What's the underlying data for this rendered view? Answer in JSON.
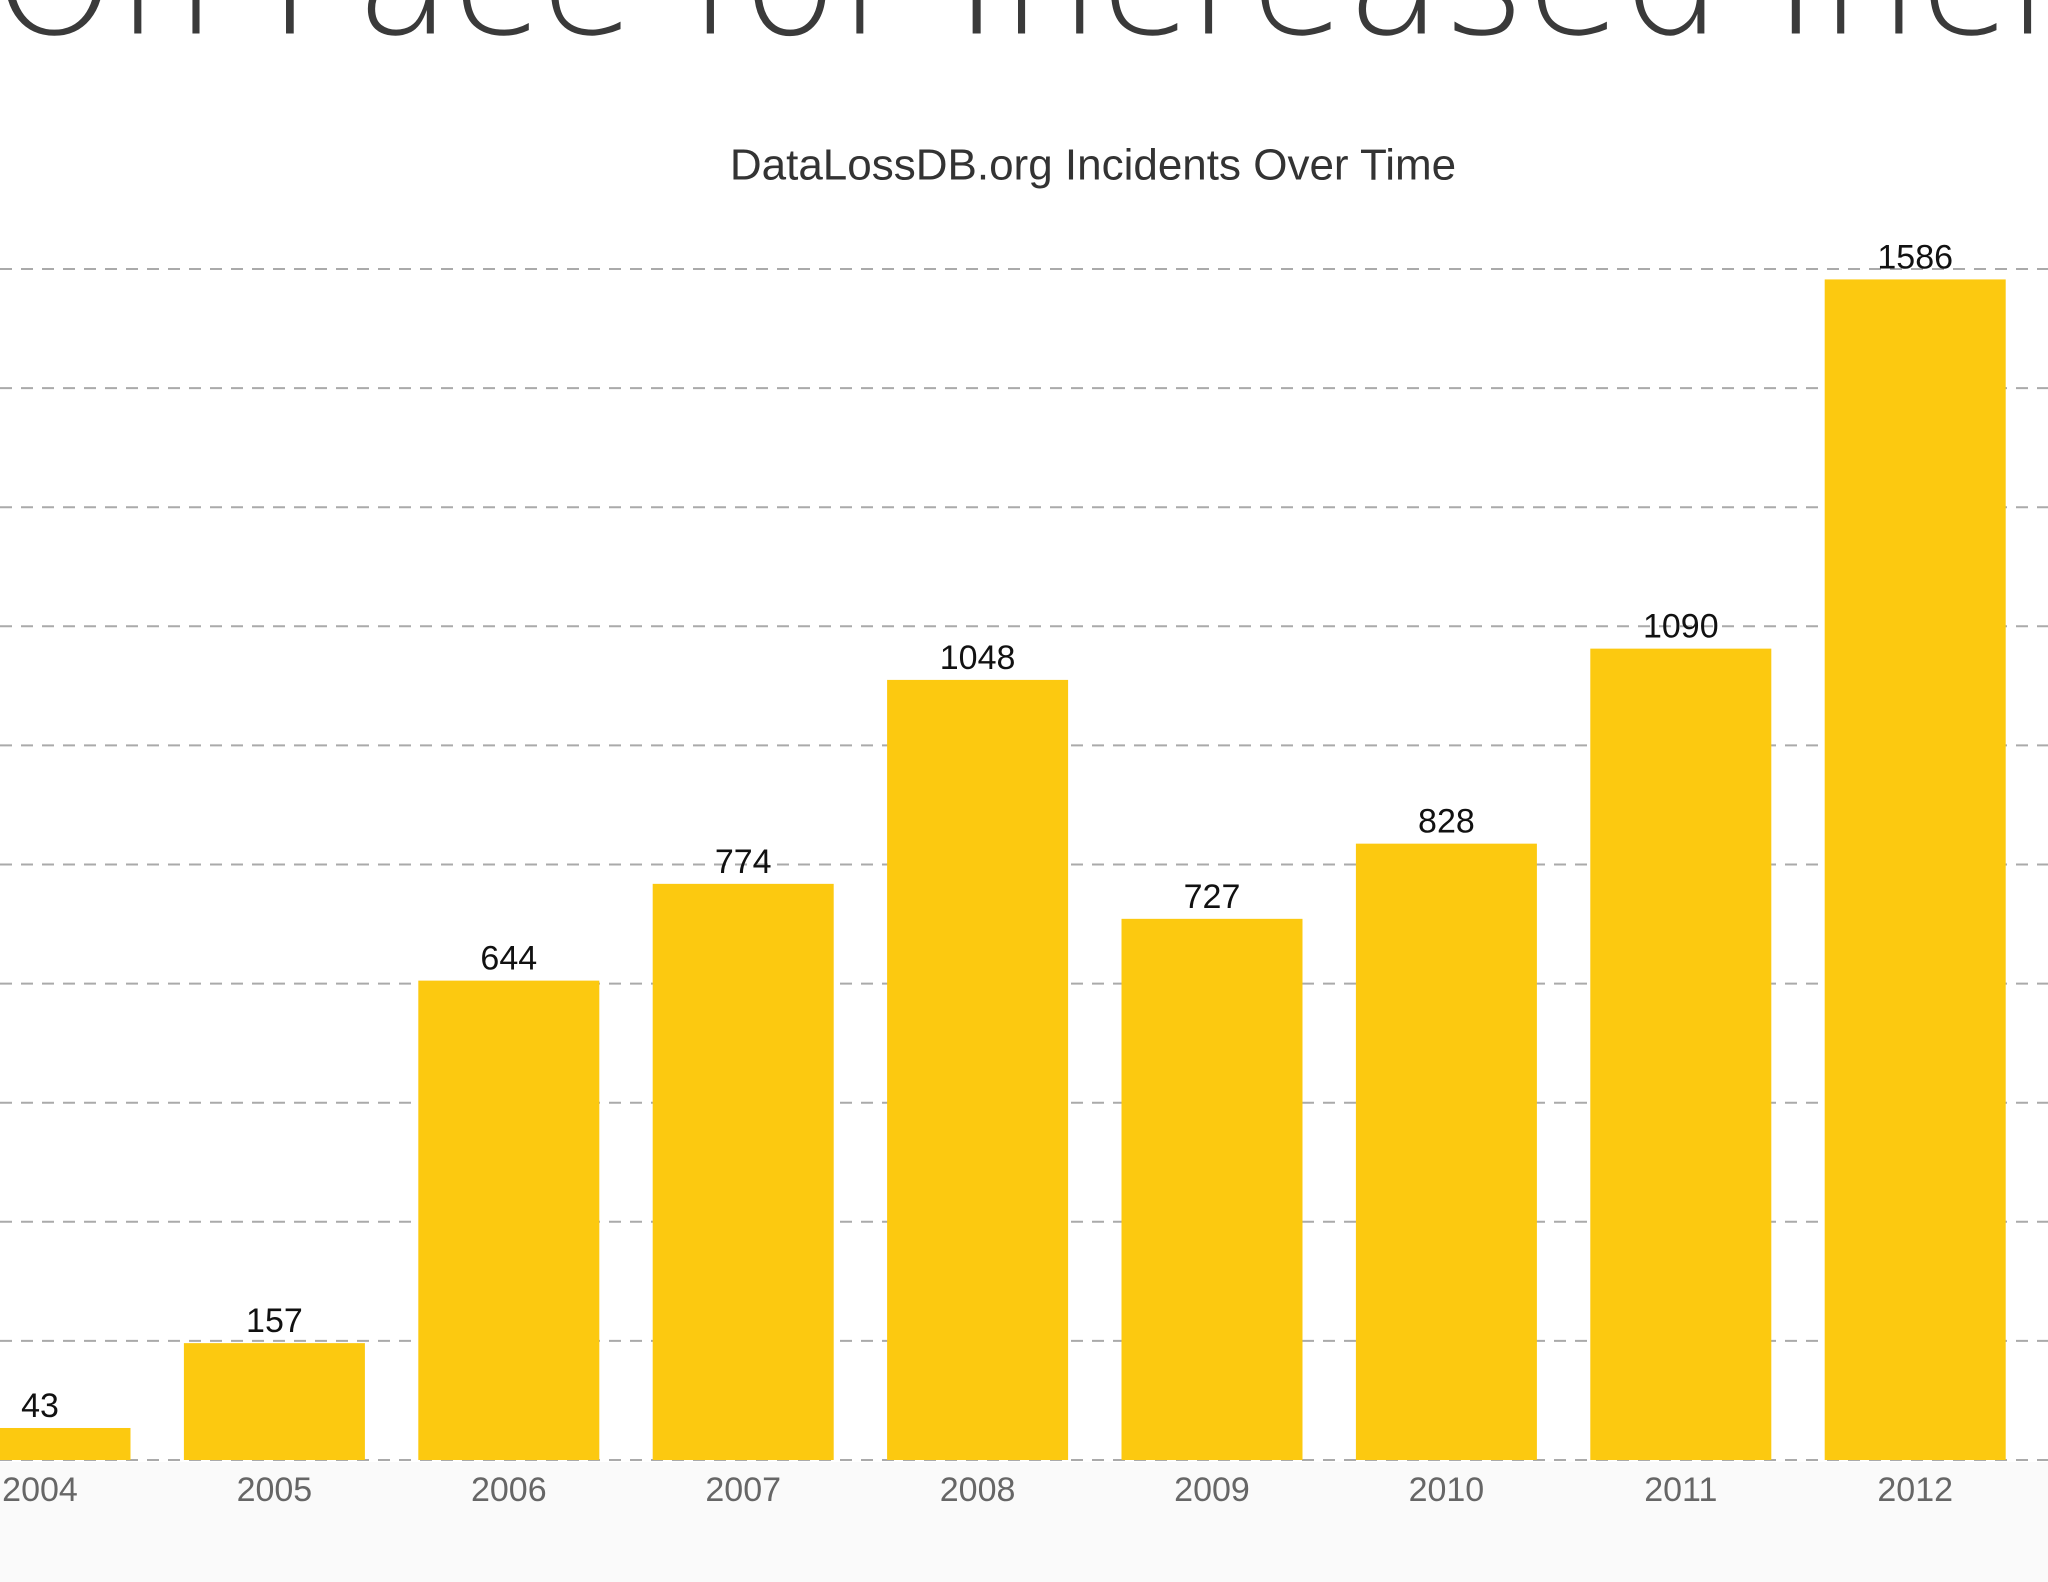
{
  "heading": "On Pace for Increased Incidents",
  "chart_data": {
    "type": "bar",
    "title": "DataLossDB.org Incidents Over Time",
    "categories": [
      "2004",
      "2005",
      "2006",
      "2007",
      "2008",
      "2009",
      "2010",
      "2011",
      "2012"
    ],
    "values": [
      43,
      157,
      644,
      774,
      1048,
      727,
      828,
      1090,
      1586
    ],
    "color": "#fcc910",
    "ylim": [
      0,
      1600
    ],
    "yticks": [
      0,
      160,
      320,
      480,
      640,
      800,
      960,
      1120,
      1280,
      1440,
      1600
    ],
    "grid": true
  }
}
